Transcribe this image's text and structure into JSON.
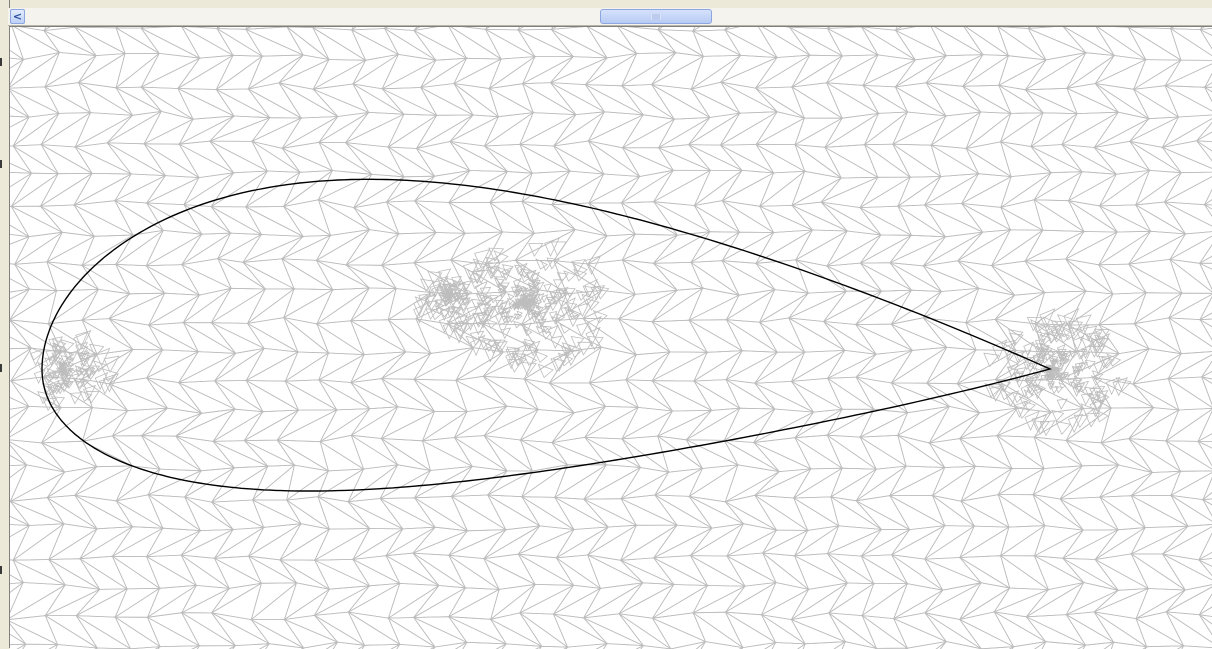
{
  "window": {
    "scroll": {
      "left_arrow_glyph": "<",
      "position_fraction": 0.53
    }
  },
  "viewport": {
    "background": "#ffffff",
    "mesh_color": "#bdbdbd",
    "airfoil_color": "#000000"
  },
  "icons": [
    "chevron-left-icon",
    "grip-icon"
  ]
}
